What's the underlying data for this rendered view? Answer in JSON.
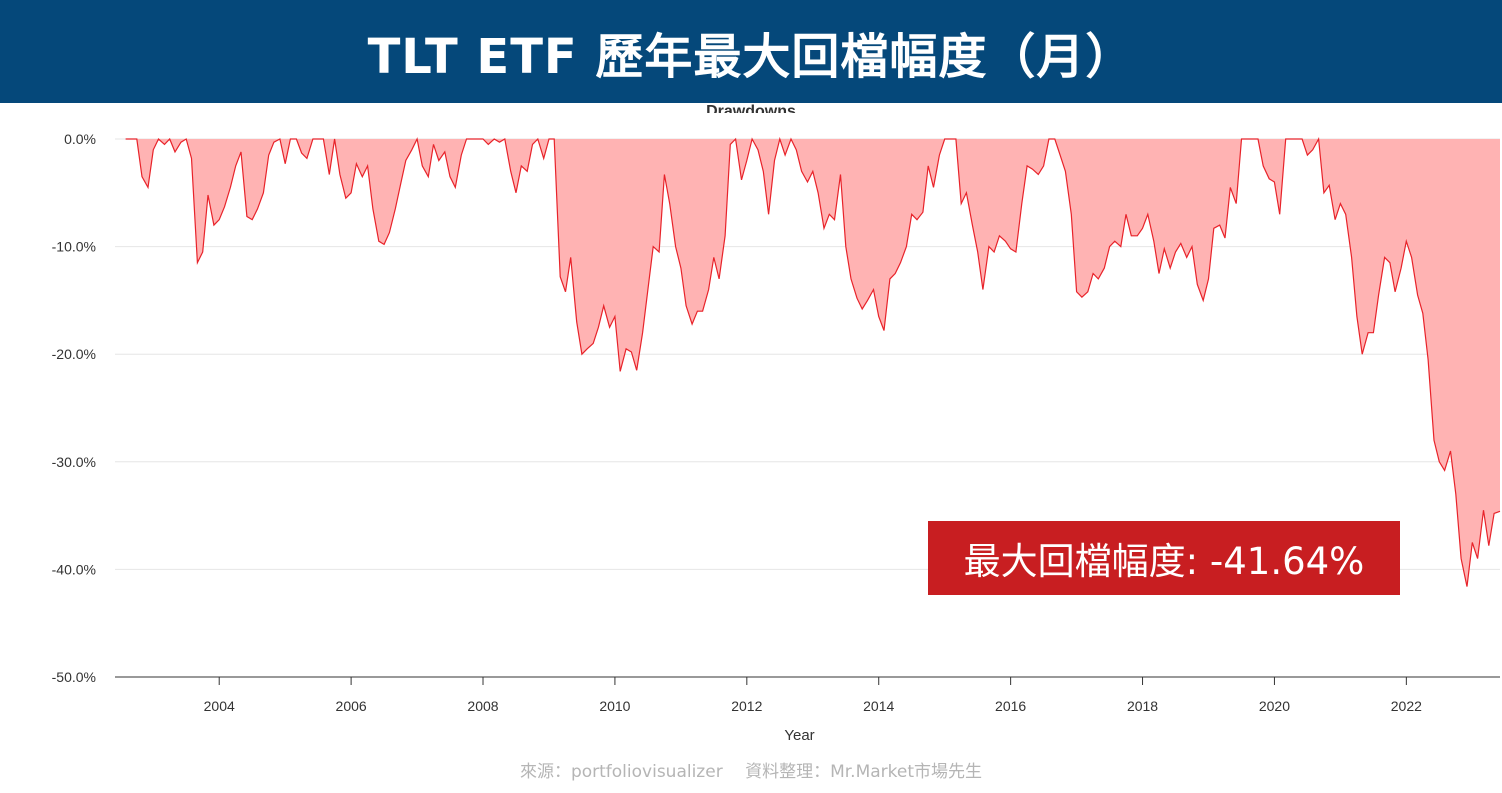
{
  "header": {
    "title": "TLT ETF 歷年最大回檔幅度（月）"
  },
  "callout": {
    "text": "最大回檔幅度: -41.64%"
  },
  "footer": {
    "source": "來源：portfoliovisualizer　 資料整理：Mr.Market市場先生"
  },
  "colors": {
    "header_bg": "#05487a",
    "fill": "#ffb3b3",
    "line": "#e8232a",
    "callout_bg": "#c81e21"
  },
  "chart_data": {
    "type": "area",
    "title": "Drawdowns",
    "xlabel": "Year",
    "ylabel": "",
    "xlim": [
      2002.42,
      2023.42
    ],
    "ylim": [
      -50,
      0
    ],
    "y_ticks": [
      0,
      -10,
      -20,
      -30,
      -40,
      -50
    ],
    "y_tick_labels": [
      "0.0%",
      "-10.0%",
      "-20.0%",
      "-30.0%",
      "-40.0%",
      "-50.0%"
    ],
    "x_ticks": [
      2004,
      2006,
      2008,
      2010,
      2012,
      2014,
      2016,
      2018,
      2020,
      2022
    ],
    "x_tick_labels": [
      "2004",
      "2006",
      "2008",
      "2010",
      "2012",
      "2014",
      "2016",
      "2018",
      "2020",
      "2022"
    ],
    "grid": true,
    "series": [
      {
        "name": "TLT",
        "points": [
          [
            2002.58,
            0
          ],
          [
            2002.75,
            0
          ],
          [
            2002.83,
            -3.5
          ],
          [
            2002.92,
            -4.5
          ],
          [
            2003.0,
            -1.0
          ],
          [
            2003.08,
            0
          ],
          [
            2003.17,
            -0.5
          ],
          [
            2003.25,
            0
          ],
          [
            2003.33,
            -1.2
          ],
          [
            2003.42,
            -0.3
          ],
          [
            2003.5,
            0
          ],
          [
            2003.58,
            -1.8
          ],
          [
            2003.67,
            -11.5
          ],
          [
            2003.75,
            -10.5
          ],
          [
            2003.83,
            -5.2
          ],
          [
            2003.92,
            -8.0
          ],
          [
            2004.0,
            -7.5
          ],
          [
            2004.08,
            -6.3
          ],
          [
            2004.17,
            -4.5
          ],
          [
            2004.25,
            -2.5
          ],
          [
            2004.33,
            -1.2
          ],
          [
            2004.42,
            -7.2
          ],
          [
            2004.5,
            -7.5
          ],
          [
            2004.58,
            -6.5
          ],
          [
            2004.67,
            -5.0
          ],
          [
            2004.75,
            -1.5
          ],
          [
            2004.83,
            -0.3
          ],
          [
            2004.92,
            0
          ],
          [
            2005.0,
            -2.3
          ],
          [
            2005.08,
            0
          ],
          [
            2005.17,
            0
          ],
          [
            2005.25,
            -1.3
          ],
          [
            2005.33,
            -1.8
          ],
          [
            2005.42,
            0
          ],
          [
            2005.5,
            0
          ],
          [
            2005.58,
            0
          ],
          [
            2005.67,
            -3.3
          ],
          [
            2005.75,
            0
          ],
          [
            2005.83,
            -3.3
          ],
          [
            2005.92,
            -5.5
          ],
          [
            2006.0,
            -5.0
          ],
          [
            2006.08,
            -2.3
          ],
          [
            2006.17,
            -3.5
          ],
          [
            2006.25,
            -2.5
          ],
          [
            2006.33,
            -6.5
          ],
          [
            2006.42,
            -9.5
          ],
          [
            2006.5,
            -9.8
          ],
          [
            2006.58,
            -8.7
          ],
          [
            2006.67,
            -6.5
          ],
          [
            2006.75,
            -4.2
          ],
          [
            2006.83,
            -2.0
          ],
          [
            2006.92,
            -1.0
          ],
          [
            2007.0,
            0
          ],
          [
            2007.08,
            -2.5
          ],
          [
            2007.17,
            -3.5
          ],
          [
            2007.25,
            -0.5
          ],
          [
            2007.33,
            -2.0
          ],
          [
            2007.42,
            -1.2
          ],
          [
            2007.5,
            -3.5
          ],
          [
            2007.58,
            -4.5
          ],
          [
            2007.67,
            -1.5
          ],
          [
            2007.75,
            0
          ],
          [
            2007.83,
            0
          ],
          [
            2007.92,
            0
          ],
          [
            2008.0,
            0
          ],
          [
            2008.08,
            -0.5
          ],
          [
            2008.17,
            0
          ],
          [
            2008.25,
            -0.3
          ],
          [
            2008.33,
            0
          ],
          [
            2008.42,
            -3.0
          ],
          [
            2008.5,
            -5.0
          ],
          [
            2008.58,
            -2.5
          ],
          [
            2008.67,
            -3.0
          ],
          [
            2008.75,
            -0.5
          ],
          [
            2008.83,
            0
          ],
          [
            2008.92,
            -1.8
          ],
          [
            2009.0,
            0
          ],
          [
            2009.08,
            0
          ],
          [
            2009.17,
            -12.8
          ],
          [
            2009.25,
            -14.2
          ],
          [
            2009.33,
            -11.0
          ],
          [
            2009.42,
            -17.0
          ],
          [
            2009.5,
            -20.0
          ],
          [
            2009.58,
            -19.5
          ],
          [
            2009.67,
            -19.0
          ],
          [
            2009.75,
            -17.5
          ],
          [
            2009.83,
            -15.5
          ],
          [
            2009.92,
            -17.5
          ],
          [
            2010.0,
            -16.5
          ],
          [
            2010.08,
            -21.6
          ],
          [
            2010.17,
            -19.5
          ],
          [
            2010.25,
            -19.8
          ],
          [
            2010.33,
            -21.5
          ],
          [
            2010.42,
            -18.0
          ],
          [
            2010.5,
            -14.0
          ],
          [
            2010.58,
            -10.0
          ],
          [
            2010.67,
            -10.5
          ],
          [
            2010.75,
            -3.3
          ],
          [
            2010.83,
            -6.0
          ],
          [
            2010.92,
            -10.0
          ],
          [
            2011.0,
            -12.0
          ],
          [
            2011.08,
            -15.5
          ],
          [
            2011.17,
            -17.2
          ],
          [
            2011.25,
            -16.0
          ],
          [
            2011.33,
            -16.0
          ],
          [
            2011.42,
            -14.0
          ],
          [
            2011.5,
            -11.0
          ],
          [
            2011.58,
            -13.0
          ],
          [
            2011.67,
            -9.0
          ],
          [
            2011.75,
            -0.5
          ],
          [
            2011.83,
            0
          ],
          [
            2011.92,
            -3.8
          ],
          [
            2012.0,
            -2.0
          ],
          [
            2012.08,
            0
          ],
          [
            2012.17,
            -1.0
          ],
          [
            2012.25,
            -3.0
          ],
          [
            2012.33,
            -7.0
          ],
          [
            2012.42,
            -2.0
          ],
          [
            2012.5,
            0
          ],
          [
            2012.58,
            -1.5
          ],
          [
            2012.67,
            0
          ],
          [
            2012.75,
            -1.0
          ],
          [
            2012.83,
            -3.0
          ],
          [
            2012.92,
            -4.0
          ],
          [
            2013.0,
            -3.0
          ],
          [
            2013.08,
            -5.0
          ],
          [
            2013.17,
            -8.3
          ],
          [
            2013.25,
            -7.0
          ],
          [
            2013.33,
            -7.5
          ],
          [
            2013.42,
            -3.3
          ],
          [
            2013.5,
            -10.0
          ],
          [
            2013.58,
            -13.0
          ],
          [
            2013.67,
            -14.8
          ],
          [
            2013.75,
            -15.8
          ],
          [
            2013.83,
            -15.0
          ],
          [
            2013.92,
            -14.0
          ],
          [
            2014.0,
            -16.5
          ],
          [
            2014.08,
            -17.8
          ],
          [
            2014.17,
            -13.0
          ],
          [
            2014.25,
            -12.5
          ],
          [
            2014.33,
            -11.5
          ],
          [
            2014.42,
            -10.0
          ],
          [
            2014.5,
            -7.0
          ],
          [
            2014.58,
            -7.5
          ],
          [
            2014.67,
            -6.8
          ],
          [
            2014.75,
            -2.5
          ],
          [
            2014.83,
            -4.5
          ],
          [
            2014.92,
            -1.5
          ],
          [
            2015.0,
            0
          ],
          [
            2015.08,
            0
          ],
          [
            2015.17,
            0
          ],
          [
            2015.25,
            -6.0
          ],
          [
            2015.33,
            -5.0
          ],
          [
            2015.42,
            -8.0
          ],
          [
            2015.5,
            -10.5
          ],
          [
            2015.58,
            -14.0
          ],
          [
            2015.67,
            -10.0
          ],
          [
            2015.75,
            -10.5
          ],
          [
            2015.83,
            -9.0
          ],
          [
            2015.92,
            -9.5
          ],
          [
            2016.0,
            -10.2
          ],
          [
            2016.08,
            -10.5
          ],
          [
            2016.17,
            -6.0
          ],
          [
            2016.25,
            -2.5
          ],
          [
            2016.33,
            -2.8
          ],
          [
            2016.42,
            -3.3
          ],
          [
            2016.5,
            -2.5
          ],
          [
            2016.58,
            0
          ],
          [
            2016.67,
            0
          ],
          [
            2016.75,
            -1.5
          ],
          [
            2016.83,
            -3.0
          ],
          [
            2016.92,
            -7.0
          ],
          [
            2017.0,
            -14.2
          ],
          [
            2017.08,
            -14.7
          ],
          [
            2017.17,
            -14.2
          ],
          [
            2017.25,
            -12.5
          ],
          [
            2017.33,
            -13.0
          ],
          [
            2017.42,
            -12.0
          ],
          [
            2017.5,
            -10.0
          ],
          [
            2017.58,
            -9.5
          ],
          [
            2017.67,
            -10.0
          ],
          [
            2017.75,
            -7.0
          ],
          [
            2017.83,
            -9.0
          ],
          [
            2017.92,
            -9.0
          ],
          [
            2018.0,
            -8.3
          ],
          [
            2018.08,
            -7.0
          ],
          [
            2018.17,
            -9.5
          ],
          [
            2018.25,
            -12.5
          ],
          [
            2018.33,
            -10.2
          ],
          [
            2018.42,
            -12.0
          ],
          [
            2018.5,
            -10.5
          ],
          [
            2018.58,
            -9.7
          ],
          [
            2018.67,
            -11.0
          ],
          [
            2018.75,
            -10.0
          ],
          [
            2018.83,
            -13.5
          ],
          [
            2018.92,
            -15.0
          ],
          [
            2019.0,
            -13.0
          ],
          [
            2019.08,
            -8.3
          ],
          [
            2019.17,
            -8.0
          ],
          [
            2019.25,
            -9.2
          ],
          [
            2019.33,
            -4.5
          ],
          [
            2019.42,
            -6.0
          ],
          [
            2019.5,
            0
          ],
          [
            2019.58,
            0
          ],
          [
            2019.67,
            0
          ],
          [
            2019.75,
            0
          ],
          [
            2019.83,
            -2.5
          ],
          [
            2019.92,
            -3.7
          ],
          [
            2020.0,
            -4.0
          ],
          [
            2020.08,
            -7.0
          ],
          [
            2020.17,
            0
          ],
          [
            2020.25,
            0
          ],
          [
            2020.33,
            0
          ],
          [
            2020.42,
            0
          ],
          [
            2020.5,
            -1.5
          ],
          [
            2020.58,
            -1.0
          ],
          [
            2020.67,
            0
          ],
          [
            2020.75,
            -5.0
          ],
          [
            2020.83,
            -4.3
          ],
          [
            2020.92,
            -7.5
          ],
          [
            2021.0,
            -6.0
          ],
          [
            2021.08,
            -7.0
          ],
          [
            2021.17,
            -11.0
          ],
          [
            2021.25,
            -16.5
          ],
          [
            2021.33,
            -20.0
          ],
          [
            2021.42,
            -18.0
          ],
          [
            2021.5,
            -18.0
          ],
          [
            2021.58,
            -14.5
          ],
          [
            2021.67,
            -11.0
          ],
          [
            2021.75,
            -11.5
          ],
          [
            2021.83,
            -14.2
          ],
          [
            2021.92,
            -12.0
          ],
          [
            2022.0,
            -9.5
          ],
          [
            2022.08,
            -11.0
          ],
          [
            2022.17,
            -14.5
          ],
          [
            2022.25,
            -16.2
          ],
          [
            2022.33,
            -20.5
          ],
          [
            2022.42,
            -28.0
          ],
          [
            2022.5,
            -30.0
          ],
          [
            2022.58,
            -30.8
          ],
          [
            2022.67,
            -29.0
          ],
          [
            2022.75,
            -33.0
          ],
          [
            2022.83,
            -39.0
          ],
          [
            2022.92,
            -41.6
          ],
          [
            2023.0,
            -37.5
          ],
          [
            2023.08,
            -39.0
          ],
          [
            2023.17,
            -34.5
          ],
          [
            2023.25,
            -37.8
          ],
          [
            2023.33,
            -34.8
          ],
          [
            2023.42,
            -34.6
          ]
        ]
      }
    ]
  }
}
